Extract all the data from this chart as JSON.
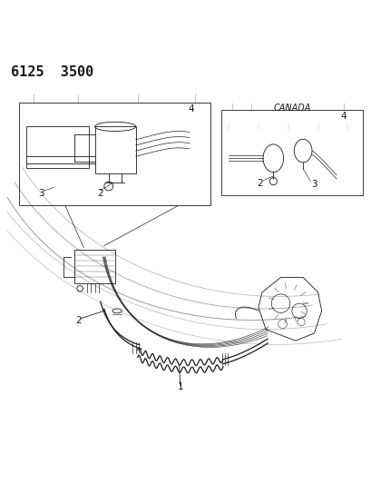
{
  "title": "6125  3500",
  "bg_color": "#ffffff",
  "line_color": "#1a1a1a",
  "label_color": "#1a1a1a",
  "canada_label": "CANADA",
  "title_fontsize": 11,
  "number_fontsize": 7.5,
  "canada_fontsize": 7
}
